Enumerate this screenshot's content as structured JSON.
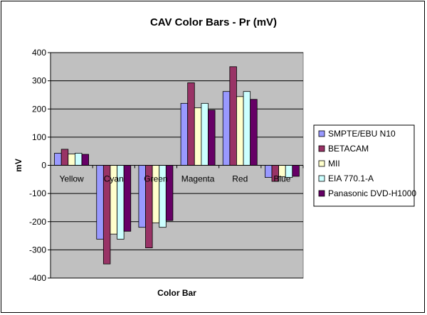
{
  "chart_data": {
    "type": "bar",
    "title": "CAV Color Bars - Pr (mV)",
    "xlabel": "Color Bar",
    "ylabel": "mV",
    "ylim": [
      -400,
      400
    ],
    "ytick_step": 100,
    "grid": true,
    "legend_position": "right",
    "categories": [
      "Yellow",
      "Cyan",
      "Green",
      "Magenta",
      "Red",
      "Blue"
    ],
    "series": [
      {
        "name": "SMPTE/EBU N10",
        "color": "#9999ff",
        "values": [
          43,
          -262,
          -220,
          220,
          262,
          -43
        ]
      },
      {
        "name": "BETACAM",
        "color": "#993366",
        "values": [
          57,
          -350,
          -293,
          293,
          350,
          -57
        ]
      },
      {
        "name": "MII",
        "color": "#ffffcc",
        "values": [
          40,
          -244,
          -204,
          204,
          244,
          -40
        ]
      },
      {
        "name": "EIA 770.1-A",
        "color": "#ccffff",
        "values": [
          43,
          -262,
          -220,
          220,
          262,
          -43
        ]
      },
      {
        "name": "Panasonic DVD-H1000",
        "color": "#660066",
        "values": [
          39,
          -234,
          -196,
          196,
          234,
          -39
        ]
      }
    ],
    "colors": {
      "plot_background": "#c0c0c0",
      "grid": "#000000"
    }
  }
}
